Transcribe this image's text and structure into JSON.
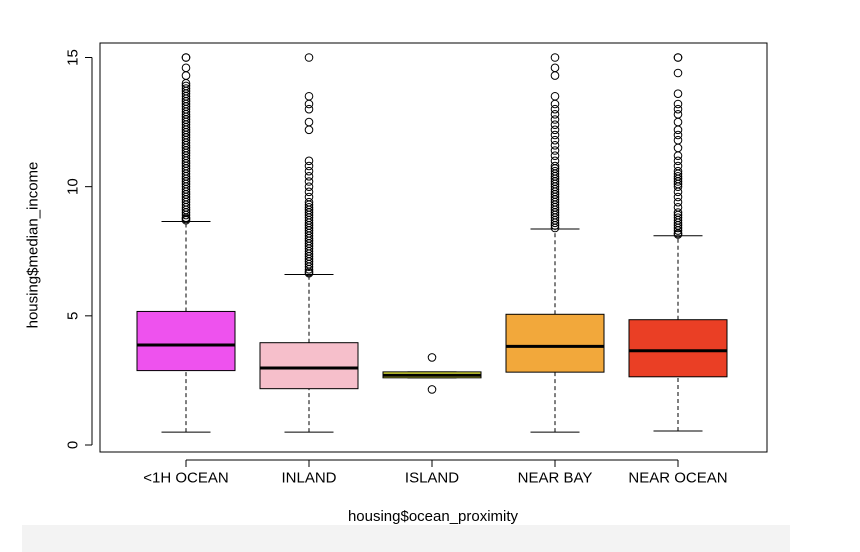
{
  "chart_data": {
    "type": "boxplot",
    "title": "",
    "xlabel": "housing$ocean_proximity",
    "ylabel": "housing$median_income",
    "ylim": [
      0,
      15.5
    ],
    "yticks": [
      0,
      5,
      10,
      15
    ],
    "grid": false,
    "categories": [
      "<1H OCEAN",
      "INLAND",
      "ISLAND",
      "NEAR BAY",
      "NEAR OCEAN"
    ],
    "series": [
      {
        "category": "<1H OCEAN",
        "color": "#ee52ee",
        "min": 0.5,
        "q1": 2.88,
        "median": 3.87,
        "q3": 5.17,
        "max": 8.65,
        "outliers": [
          8.7,
          8.75,
          8.8,
          8.9,
          9.0,
          9.1,
          9.2,
          9.3,
          9.4,
          9.5,
          9.6,
          9.7,
          9.8,
          9.9,
          10.0,
          10.1,
          10.2,
          10.3,
          10.4,
          10.5,
          10.6,
          10.7,
          10.8,
          10.9,
          11.0,
          11.1,
          11.2,
          11.3,
          11.4,
          11.5,
          11.6,
          11.7,
          11.8,
          11.9,
          12.0,
          12.1,
          12.2,
          12.3,
          12.4,
          12.5,
          12.6,
          12.7,
          12.8,
          12.9,
          13.0,
          13.1,
          13.2,
          13.3,
          13.4,
          13.5,
          13.6,
          13.7,
          13.8,
          13.9,
          14.0,
          14.3,
          14.6,
          15.0,
          15.0
        ]
      },
      {
        "category": "INLAND",
        "color": "#f6bfcb",
        "min": 0.5,
        "q1": 2.18,
        "median": 2.98,
        "q3": 3.96,
        "max": 6.6,
        "outliers": [
          6.65,
          6.7,
          6.8,
          6.9,
          7.0,
          7.1,
          7.2,
          7.3,
          7.4,
          7.5,
          7.6,
          7.7,
          7.8,
          7.9,
          8.0,
          8.1,
          8.2,
          8.3,
          8.4,
          8.5,
          8.6,
          8.7,
          8.8,
          8.9,
          9.0,
          9.1,
          9.2,
          9.3,
          9.4,
          9.6,
          9.8,
          10.0,
          10.2,
          10.4,
          10.6,
          10.8,
          11.0,
          12.2,
          12.5,
          13.0,
          13.2,
          13.5,
          15.0
        ]
      },
      {
        "category": "ISLAND",
        "color": "#e8ec3a",
        "min": 2.6,
        "q1": 2.6,
        "median": 2.7,
        "q3": 2.83,
        "max": 2.83,
        "outliers": [
          2.15,
          3.39
        ]
      },
      {
        "category": "NEAR BAY",
        "color": "#f2a83b",
        "min": 0.5,
        "q1": 2.82,
        "median": 3.82,
        "q3": 5.06,
        "max": 8.36,
        "outliers": [
          8.4,
          8.5,
          8.6,
          8.7,
          8.8,
          8.9,
          9.0,
          9.1,
          9.2,
          9.3,
          9.4,
          9.5,
          9.6,
          9.7,
          9.8,
          9.9,
          10.0,
          10.1,
          10.2,
          10.3,
          10.4,
          10.5,
          10.6,
          10.7,
          10.8,
          11.0,
          11.2,
          11.4,
          11.6,
          11.8,
          12.0,
          12.2,
          12.4,
          12.6,
          12.8,
          13.0,
          13.2,
          13.5,
          14.3,
          14.6,
          15.0
        ]
      },
      {
        "category": "NEAR OCEAN",
        "color": "#ea3f25",
        "min": 0.54,
        "q1": 2.64,
        "median": 3.65,
        "q3": 4.85,
        "max": 8.1,
        "outliers": [
          8.15,
          8.2,
          8.3,
          8.4,
          8.5,
          8.6,
          8.7,
          8.8,
          8.9,
          9.0,
          9.2,
          9.4,
          9.6,
          9.8,
          10.0,
          10.1,
          10.2,
          10.3,
          10.4,
          10.5,
          10.6,
          10.8,
          11.0,
          11.2,
          11.5,
          11.8,
          12.0,
          12.2,
          12.5,
          12.8,
          13.0,
          13.2,
          13.6,
          14.4,
          15.0,
          15.0
        ]
      }
    ]
  }
}
